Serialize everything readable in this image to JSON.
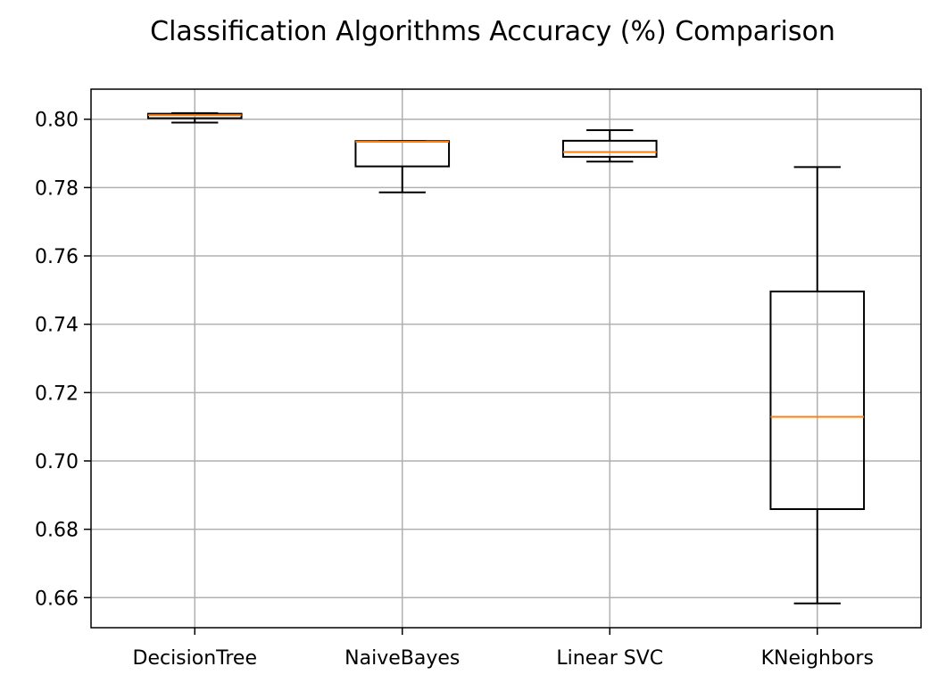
{
  "chart_data": {
    "type": "boxplot",
    "title": "Classification Algorithms Accuracy (%) Comparison",
    "xlabel": "",
    "ylabel": "",
    "categories": [
      "DecisionTree",
      "NaiveBayes",
      "Linear SVC",
      "KNeighbors"
    ],
    "boxes": [
      {
        "category": "DecisionTree",
        "whisker_low": 0.799,
        "q1": 0.8003,
        "median": 0.8012,
        "q3": 0.8016,
        "whisker_high": 0.8018
      },
      {
        "category": "NaiveBayes",
        "whisker_low": 0.7786,
        "q1": 0.7862,
        "median": 0.7934,
        "q3": 0.7936,
        "whisker_high": 0.7936
      },
      {
        "category": "Linear SVC",
        "whisker_low": 0.7876,
        "q1": 0.789,
        "median": 0.7904,
        "q3": 0.7937,
        "whisker_high": 0.7968
      },
      {
        "category": "KNeighbors",
        "whisker_low": 0.6583,
        "q1": 0.6859,
        "median": 0.7129,
        "q3": 0.7496,
        "whisker_high": 0.786
      }
    ],
    "ylim": [
      0.6512,
      0.8088
    ],
    "yticks": [
      0.66,
      0.68,
      0.7,
      0.72,
      0.74,
      0.76,
      0.78,
      0.8
    ],
    "ytick_labels": [
      "0.66",
      "0.68",
      "0.70",
      "0.72",
      "0.74",
      "0.76",
      "0.78",
      "0.80"
    ],
    "grid": true,
    "legend": "none",
    "colors": {
      "box": "#000000",
      "median": "#ff7f0e",
      "grid": "#b0b0b0"
    }
  }
}
